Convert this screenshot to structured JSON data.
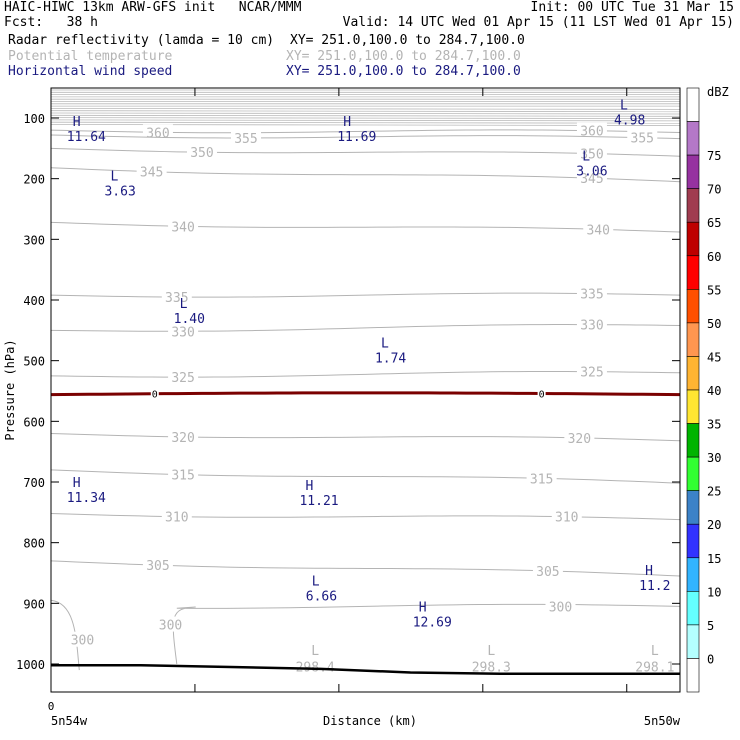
{
  "header": {
    "line1_left": "HAIC-HIWC 13km ARW-GFS init   NCAR/MMM",
    "line1_right": "Init: 00 UTC Tue 31 Mar 15",
    "line2_left": "Fcst:   38 h",
    "line2_right": "Valid: 14 UTC Wed 01 Apr 15 (11 LST Wed 01 Apr 15)",
    "fields": [
      {
        "name": "Radar reflectivity (lamda = 10 cm)",
        "xy": "XY= 251.0,100.0 to 284.7,100.0",
        "color": "#000000"
      },
      {
        "name": "Potential temperature",
        "xy": "XY= 251.0,100.0 to 284.7,100.0",
        "color": "#b4b4b4"
      },
      {
        "name": "Horizontal wind speed",
        "xy": "XY= 251.0,100.0 to 284.7,100.0",
        "color": "#1a1a80"
      }
    ]
  },
  "chart_data": {
    "type": "line",
    "ylabel": "Pressure (hPa)",
    "xlabel": "Distance (km)",
    "yticks": [
      "100",
      "200",
      "300",
      "400",
      "500",
      "600",
      "700",
      "800",
      "900",
      "1000"
    ],
    "ylim": [
      1060,
      50
    ],
    "x_origin_label": "0",
    "x_left_label": "5n54w",
    "x_right_label": "5n50w",
    "theta_levels": [
      {
        "label": "360",
        "p": [
          120,
          124
        ]
      },
      {
        "label": "355",
        "p": [
          128,
          134
        ]
      },
      {
        "label": "350",
        "p": [
          150,
          163
        ]
      },
      {
        "label": "345",
        "p": [
          182,
          205
        ]
      },
      {
        "label": "340",
        "p": [
          272,
          288
        ]
      },
      {
        "label": "335",
        "p": [
          392,
          392
        ]
      },
      {
        "label": "330",
        "p": [
          450,
          442
        ]
      },
      {
        "label": "325",
        "p": [
          525,
          520
        ]
      },
      {
        "label": "320",
        "p": [
          620,
          632
        ]
      },
      {
        "label": "315",
        "p": [
          680,
          702
        ]
      },
      {
        "label": "310",
        "p": [
          752,
          762
        ]
      },
      {
        "label": "305",
        "p": [
          830,
          855
        ]
      },
      {
        "label": "300",
        "p": [
          905,
          905
        ]
      }
    ],
    "theta_low_labels": [
      {
        "label": "L",
        "value": "298.4",
        "x_frac": 0.42
      },
      {
        "label": "L",
        "value": "298.3",
        "x_frac": 0.7
      },
      {
        "label": "L",
        "value": "298.1",
        "x_frac": 0.96
      }
    ],
    "wind_extrema": [
      {
        "label": "H",
        "value": "11.64",
        "x_frac": 0.06,
        "p": 105
      },
      {
        "label": "H",
        "value": "11.69",
        "x_frac": 0.49,
        "p": 105
      },
      {
        "label": "L",
        "value": "4.98",
        "x_frac": 0.93,
        "p": 78
      },
      {
        "label": "L",
        "value": "3.06",
        "x_frac": 0.87,
        "p": 162
      },
      {
        "label": "L",
        "value": "3.63",
        "x_frac": 0.12,
        "p": 195
      },
      {
        "label": "L",
        "value": "1.40",
        "x_frac": 0.23,
        "p": 405
      },
      {
        "label": "L",
        "value": "1.74",
        "x_frac": 0.55,
        "p": 470
      },
      {
        "label": "H",
        "value": "11.34",
        "x_frac": 0.06,
        "p": 700
      },
      {
        "label": "H",
        "value": "11.21",
        "x_frac": 0.43,
        "p": 705
      },
      {
        "label": "L",
        "value": "6.66",
        "x_frac": 0.44,
        "p": 862
      },
      {
        "label": "H",
        "value": "12.69",
        "x_frac": 0.61,
        "p": 905
      },
      {
        "label": "H",
        "value": "11.2",
        "x_frac": 0.97,
        "p": 845
      }
    ],
    "reflectivity_contour": {
      "p": 556,
      "label": "0",
      "color": "#7a0000"
    },
    "terrain_p": [
      1002,
      1002,
      1005,
      1008,
      1014,
      1016,
      1016,
      1016
    ],
    "colorbar": {
      "unit": "dBZ",
      "levels": [
        "0",
        "5",
        "10",
        "15",
        "20",
        "25",
        "30",
        "35",
        "40",
        "45",
        "50",
        "55",
        "60",
        "65",
        "70",
        "75"
      ],
      "colors": [
        "#ffffff",
        "#b4ffff",
        "#64ffff",
        "#32b4ff",
        "#3232ff",
        "#3c82c8",
        "#32ff32",
        "#00b400",
        "#ffe632",
        "#ffb432",
        "#ff9650",
        "#ff5000",
        "#ff0000",
        "#be0000",
        "#a03c50",
        "#9632a0",
        "#b478c8",
        "#ffffff"
      ]
    }
  }
}
